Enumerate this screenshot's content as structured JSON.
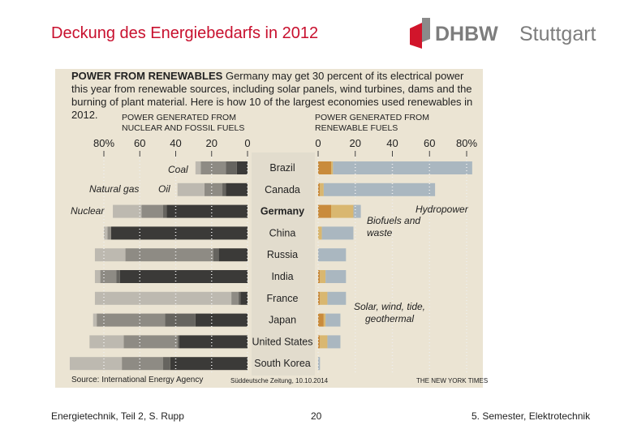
{
  "slide": {
    "title": "Deckung des Energiebedarfs in 2012",
    "logo_text": "DHBW",
    "logo_city": "Stuttgart",
    "footer_left": "Energietechnik, Teil 2, S. Rupp",
    "footer_center": "20",
    "footer_right": "5. Semester, Elektrotechnik",
    "image_credit": "Süddeutsche Zeitung, 10.10.2014"
  },
  "chart_data": {
    "type": "diverging-bar",
    "title": "POWER FROM RENEWABLES",
    "subtitle": "Germany may get 30 percent of its electrical power this year from renewable sources, including solar panels, wind turbines, dams and the burning of plant material. Here is how 10 of the largest economies used renewables in 2012.",
    "xlabel": "POWER GENERATED FROM NUCLEAR AND FOSSIL FUELS",
    "x2label": "POWER GENERATED FROM RENEWABLE FUELS",
    "source": "Source: International Energy Agency",
    "publisher": "THE NEW YORK TIMES",
    "categories": [
      "Brazil",
      "Canada",
      "Germany",
      "China",
      "Russia",
      "India",
      "France",
      "Japan",
      "United States",
      "South Korea"
    ],
    "highlight": "Germany",
    "xlim": [
      0,
      80
    ],
    "x_reversed": true,
    "xticks": [
      {
        "value": 80,
        "label": "80%"
      },
      60,
      40,
      20,
      0
    ],
    "x2lim": [
      0,
      80
    ],
    "x2ticks": [
      0,
      20,
      40,
      60,
      {
        "value": 80,
        "label": "80%"
      }
    ],
    "grid": true,
    "series": [
      {
        "name": "Coal",
        "color": "#3b3a38",
        "axis": "x",
        "values": [
          6,
          12,
          45,
          76,
          16,
          71,
          4,
          29,
          38,
          43
        ]
      },
      {
        "name": "Oil",
        "color": "#66645f",
        "axis": "x",
        "values": [
          6,
          2,
          2,
          0,
          3,
          2,
          1,
          17,
          1,
          4
        ]
      },
      {
        "name": "Natural gas",
        "color": "#8e8b84",
        "axis": "x",
        "values": [
          14,
          10,
          12,
          2,
          49,
          9,
          4,
          38,
          30,
          23
        ]
      },
      {
        "name": "Nuclear",
        "color": "#bdb9b0",
        "axis": "x",
        "values": [
          3,
          15,
          16,
          2,
          17,
          3,
          76,
          2,
          19,
          29
        ]
      },
      {
        "name": "Biofuels and waste",
        "color": "#c98b3c",
        "axis": "x2",
        "values": [
          7,
          1,
          7,
          0,
          0,
          1,
          1,
          3,
          1,
          0
        ]
      },
      {
        "name": "Solar, wind, tide, geothermal",
        "color": "#d9b770",
        "axis": "x2",
        "values": [
          1,
          2,
          12,
          2,
          0,
          3,
          4,
          1,
          4,
          0
        ]
      },
      {
        "name": "Hydropower",
        "color": "#aab7c0",
        "axis": "x2",
        "values": [
          75,
          60,
          4,
          17,
          15,
          11,
          10,
          8,
          7,
          1
        ]
      }
    ]
  }
}
